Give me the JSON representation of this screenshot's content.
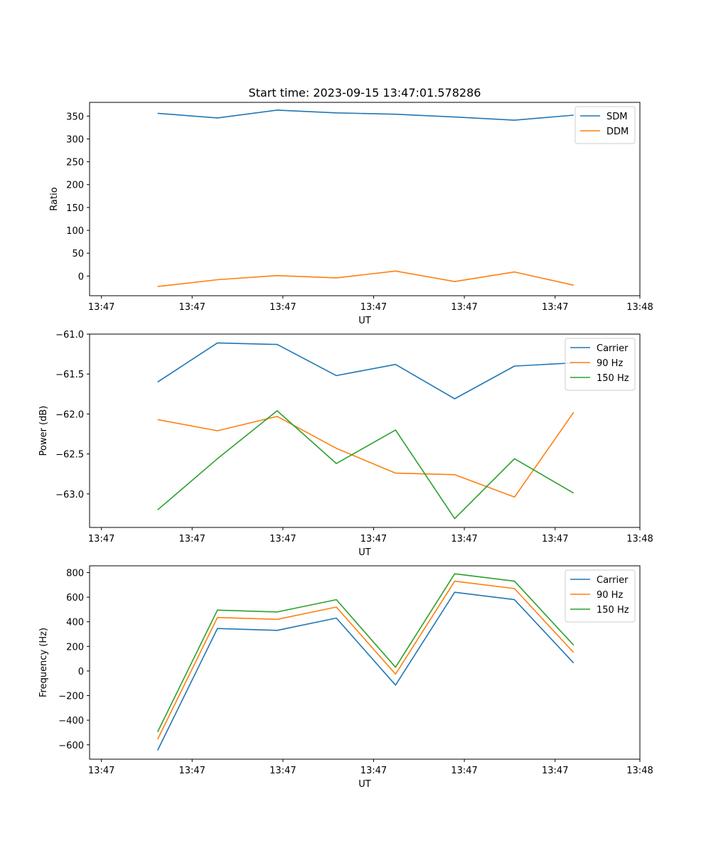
{
  "figure": {
    "title": "Start time: 2023-09-15 13:47:01.578286"
  },
  "chart_data": [
    {
      "type": "line",
      "id": "ratio",
      "ylabel": "Ratio",
      "xlabel": "UT",
      "xlim": [
        0,
        9.3
      ],
      "ylim": [
        -43,
        380
      ],
      "x_ticks": [
        0.2,
        1.733,
        3.267,
        4.8,
        6.333,
        7.867,
        9.3
      ],
      "x_tick_labels": [
        "13:47",
        "13:47",
        "13:47",
        "13:47",
        "13:47",
        "13:47",
        "13:48"
      ],
      "y_ticks": [
        0,
        50,
        100,
        150,
        200,
        250,
        300,
        350
      ],
      "y_tick_labels": [
        "0",
        "50",
        "100",
        "150",
        "200",
        "250",
        "300",
        "350"
      ],
      "x": [
        1.15,
        2.16,
        3.17,
        4.17,
        5.17,
        6.17,
        7.18,
        8.18
      ],
      "legend_position": "upper-right",
      "series": [
        {
          "name": "SDM",
          "color": "#1f77b4",
          "values": [
            356,
            346,
            363,
            357,
            354,
            348,
            341,
            352
          ]
        },
        {
          "name": "DDM",
          "color": "#ff7f0e",
          "values": [
            -23,
            -8,
            1,
            -4,
            11,
            -12,
            9,
            -20
          ]
        }
      ]
    },
    {
      "type": "line",
      "id": "power",
      "ylabel": "Power (dB)",
      "xlabel": "UT",
      "xlim": [
        0,
        9.3
      ],
      "ylim": [
        -63.42,
        -61.0
      ],
      "x_ticks": [
        0.2,
        1.733,
        3.267,
        4.8,
        6.333,
        7.867,
        9.3
      ],
      "x_tick_labels": [
        "13:47",
        "13:47",
        "13:47",
        "13:47",
        "13:47",
        "13:47",
        "13:48"
      ],
      "y_ticks": [
        -61.0,
        -61.5,
        -62.0,
        -62.5,
        -63.0
      ],
      "y_tick_labels": [
        "−61.0",
        "−61.5",
        "−62.0",
        "−62.5",
        "−63.0"
      ],
      "x": [
        1.15,
        2.16,
        3.17,
        4.17,
        5.17,
        6.17,
        7.18,
        8.18
      ],
      "legend_position": "upper-right",
      "series": [
        {
          "name": "Carrier",
          "color": "#1f77b4",
          "values": [
            -61.6,
            -61.11,
            -61.13,
            -61.52,
            -61.38,
            -61.81,
            -61.4,
            -61.36
          ]
        },
        {
          "name": "90 Hz",
          "color": "#ff7f0e",
          "values": [
            -62.07,
            -62.21,
            -62.03,
            -62.43,
            -62.74,
            -62.76,
            -63.04,
            -61.98
          ]
        },
        {
          "name": "150 Hz",
          "color": "#2ca02c",
          "values": [
            -63.2,
            -62.56,
            -61.96,
            -62.62,
            -62.2,
            -63.31,
            -62.56,
            -62.99
          ]
        }
      ]
    },
    {
      "type": "line",
      "id": "frequency",
      "ylabel": "Frequency (Hz)",
      "xlabel": "UT",
      "xlim": [
        0,
        9.3
      ],
      "ylim": [
        -717,
        855
      ],
      "x_ticks": [
        0.2,
        1.733,
        3.267,
        4.8,
        6.333,
        7.867,
        9.3
      ],
      "x_tick_labels": [
        "13:47",
        "13:47",
        "13:47",
        "13:47",
        "13:47",
        "13:47",
        "13:48"
      ],
      "y_ticks": [
        -600,
        -400,
        -200,
        0,
        200,
        400,
        600,
        800
      ],
      "y_tick_labels": [
        "−600",
        "−400",
        "−200",
        "0",
        "200",
        "400",
        "600",
        "800"
      ],
      "x": [
        1.15,
        2.16,
        3.17,
        4.17,
        5.17,
        6.17,
        7.18,
        8.18
      ],
      "legend_position": "upper-right",
      "series": [
        {
          "name": "Carrier",
          "color": "#1f77b4",
          "values": [
            -645,
            345,
            330,
            430,
            -115,
            640,
            580,
            65
          ]
        },
        {
          "name": "90 Hz",
          "color": "#ff7f0e",
          "values": [
            -555,
            435,
            420,
            520,
            -25,
            730,
            670,
            150
          ]
        },
        {
          "name": "150 Hz",
          "color": "#2ca02c",
          "values": [
            -495,
            495,
            480,
            580,
            30,
            790,
            730,
            210
          ]
        }
      ]
    }
  ]
}
